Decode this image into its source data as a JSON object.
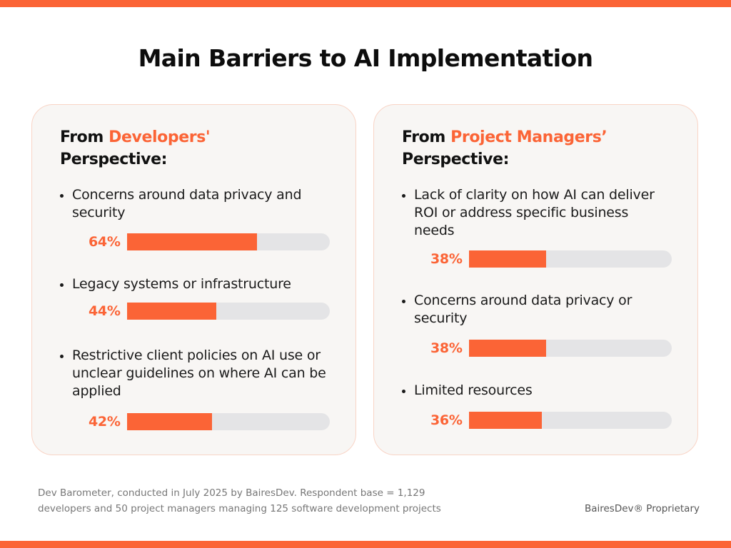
{
  "title": "Main Barriers to AI Implementation",
  "colors": {
    "accent": "#fb6436",
    "track": "#e4e4e6",
    "card_bg": "#f8f6f4",
    "card_border": "#f9d4c6"
  },
  "chart_data": [
    {
      "type": "bar",
      "heading_prefix": "From ",
      "heading_accent": "Developers'",
      "heading_suffix": "Perspective:",
      "categories": [
        "Concerns around data privacy and security",
        "Legacy systems or infrastructure",
        "Restrictive client policies on AI use or unclear guidelines on where AI can be applied"
      ],
      "values": [
        64,
        44,
        42
      ],
      "labels": [
        "64%",
        "44%",
        "42%"
      ],
      "ylim": [
        0,
        100
      ]
    },
    {
      "type": "bar",
      "heading_prefix": "From ",
      "heading_accent": "Project Managers’",
      "heading_suffix": "Perspective:",
      "categories": [
        "Lack of clarity on how AI can deliver ROI or address specific business needs",
        "Concerns around data privacy or security",
        "Limited resources"
      ],
      "values": [
        38,
        38,
        36
      ],
      "labels": [
        "38%",
        "38%",
        "36%"
      ],
      "ylim": [
        0,
        100
      ]
    }
  ],
  "footer": {
    "note_line1": "Dev Barometer, conducted in July 2025 by BairesDev. Respondent base = 1,129",
    "note_line2": "developers and 50 project managers managing 125 software development projects",
    "proprietary": "BairesDev® Proprietary"
  }
}
